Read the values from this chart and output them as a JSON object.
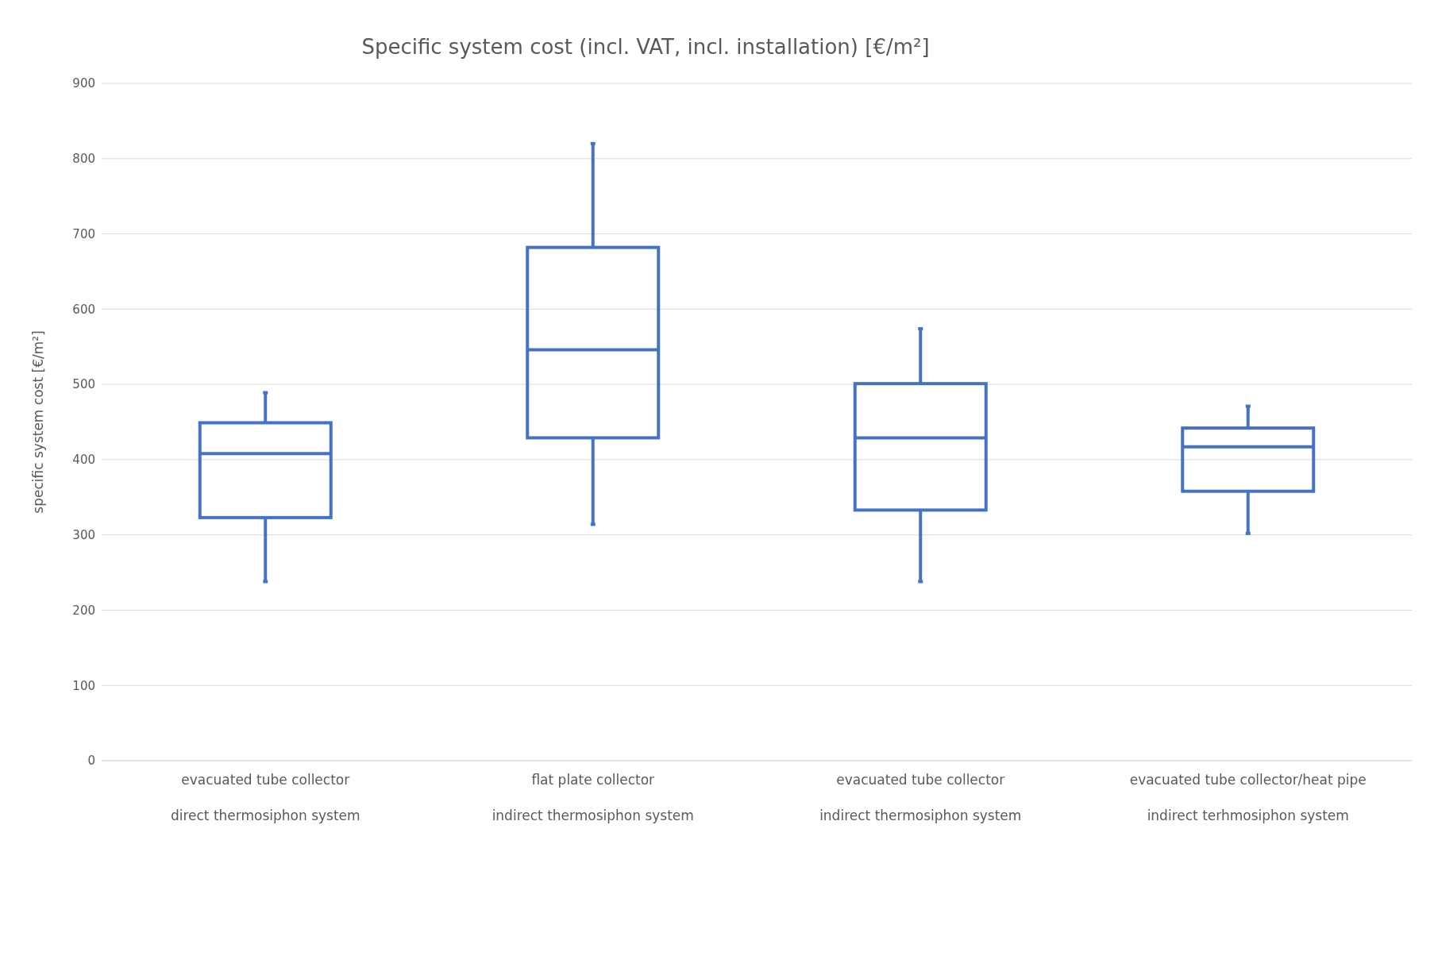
{
  "chart_data": {
    "type": "box",
    "title": "Specific system cost (incl. VAT, incl. installation) [€/m²]",
    "ylabel": "specific system cost [€/m²]",
    "categories": [
      "evacuated tube collector\ndirect thermosiphon system",
      "flat plate collector\nindirect thermosiphon system",
      "evacuated tube collector\nindirect thermosiphon system",
      "evacuated tube collector/heat pipe\nindirect terhmosiphon system"
    ],
    "boxes": [
      {
        "low": 238,
        "q1": 323,
        "median": 408,
        "q3": 449,
        "high": 489
      },
      {
        "low": 314,
        "q1": 429,
        "median": 546,
        "q3": 682,
        "high": 820
      },
      {
        "low": 238,
        "q1": 333,
        "median": 429,
        "q3": 501,
        "high": 574
      },
      {
        "low": 302,
        "q1": 358,
        "median": 417,
        "q3": 442,
        "high": 471
      }
    ],
    "color": "#4472c4",
    "ylim": [
      0,
      900
    ],
    "yticks": [
      0,
      100,
      200,
      300,
      400,
      500,
      600,
      700,
      800,
      900
    ],
    "grid": "y"
  }
}
